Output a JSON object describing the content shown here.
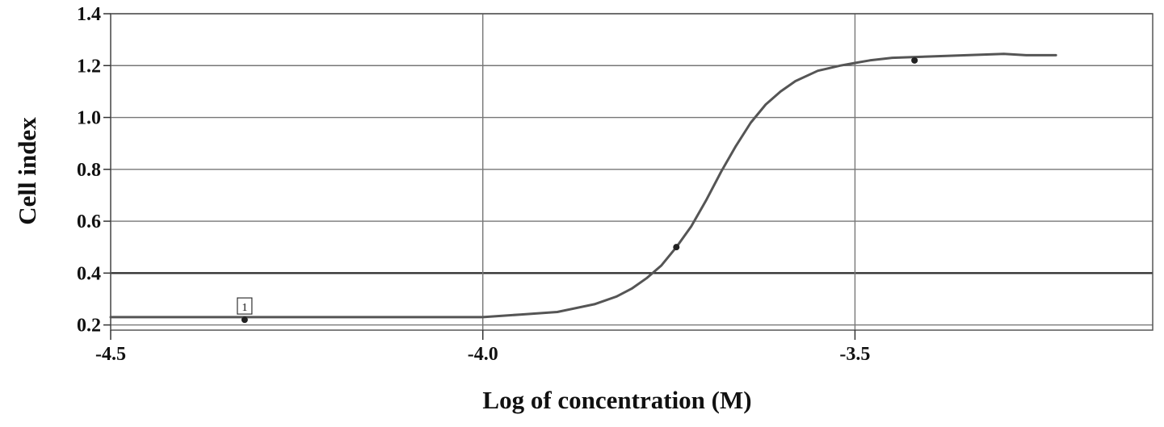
{
  "chart_data": {
    "type": "line",
    "title": "",
    "xlabel": "Log of concentration (M)",
    "ylabel": "Cell index",
    "xlim": [
      -4.5,
      -3.1
    ],
    "ylim": [
      0.18,
      1.4
    ],
    "x_ticks": [
      -4.5,
      -4.0,
      -3.5
    ],
    "x_tick_labels": [
      "-4.5",
      "-4.0",
      "-3.5"
    ],
    "y_ticks": [
      0.2,
      0.4,
      0.6,
      0.8,
      1.0,
      1.2,
      1.4
    ],
    "y_tick_labels": [
      "0.2",
      "0.4",
      "0.6",
      "0.8",
      "1.0",
      "1.2",
      "1.4"
    ],
    "grid": true,
    "legend": "none",
    "line_color": "#555555",
    "series": [
      {
        "values_note": "",
        "x": [
          -4.5,
          -4.4,
          -4.3,
          -4.2,
          -4.1,
          -4.02,
          -4.0,
          -3.95,
          -3.9,
          -3.85,
          -3.82,
          -3.8,
          -3.78,
          -3.76,
          -3.74,
          -3.72,
          -3.7,
          -3.68,
          -3.66,
          -3.64,
          -3.62,
          -3.6,
          -3.58,
          -3.55,
          -3.52,
          -3.5,
          -3.48,
          -3.45,
          -3.4,
          -3.35,
          -3.3,
          -3.27,
          -3.23
        ],
        "y": [
          0.23,
          0.23,
          0.23,
          0.23,
          0.23,
          0.23,
          0.23,
          0.24,
          0.25,
          0.28,
          0.31,
          0.34,
          0.38,
          0.43,
          0.5,
          0.58,
          0.68,
          0.79,
          0.89,
          0.98,
          1.05,
          1.1,
          1.14,
          1.18,
          1.2,
          1.21,
          1.22,
          1.23,
          1.235,
          1.24,
          1.245,
          1.24,
          1.24
        ]
      }
    ],
    "markers": [
      {
        "x": -4.32,
        "y": 0.22
      },
      {
        "x": -3.74,
        "y": 0.5
      },
      {
        "x": -3.42,
        "y": 1.22
      }
    ],
    "annotations": [
      {
        "text": "1",
        "x": -4.32,
        "y": 0.27
      }
    ]
  }
}
